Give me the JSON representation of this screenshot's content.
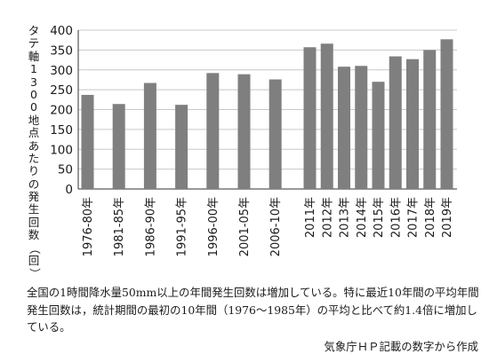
{
  "chart_data": {
    "type": "bar",
    "ylabel": "タテ軸1300地点あたりの発生回数（回）",
    "ylim": [
      0,
      400
    ],
    "yticks": [
      "0",
      "50",
      "100",
      "150",
      "200",
      "250",
      "300",
      "350",
      "400"
    ],
    "grid": true,
    "bar_color": "#7f7f7f",
    "groups": [
      {
        "categories": [
          "1976-80年",
          "1981-85年",
          "1986-90年",
          "1991-95年",
          "1996-00年",
          "2001-05年",
          "2006-10年"
        ],
        "values": [
          237,
          214,
          267,
          212,
          292,
          289,
          276
        ]
      },
      {
        "categories": [
          "2011年",
          "2012年",
          "2013年",
          "2014年",
          "2015年",
          "2016年",
          "2017年",
          "2018年",
          "2019年"
        ],
        "values": [
          357,
          366,
          308,
          310,
          270,
          334,
          327,
          350,
          377
        ]
      }
    ]
  },
  "caption": "全国の1時間降水量50mm以上の年間発生回数は増加している。特に最近10年間の平均年間発生回数は，統計期間の最初の10年間（1976～1985年）の平均と比べて約1.4倍に増加している。",
  "source": "気象庁ＨＰ記載の数字から作成"
}
